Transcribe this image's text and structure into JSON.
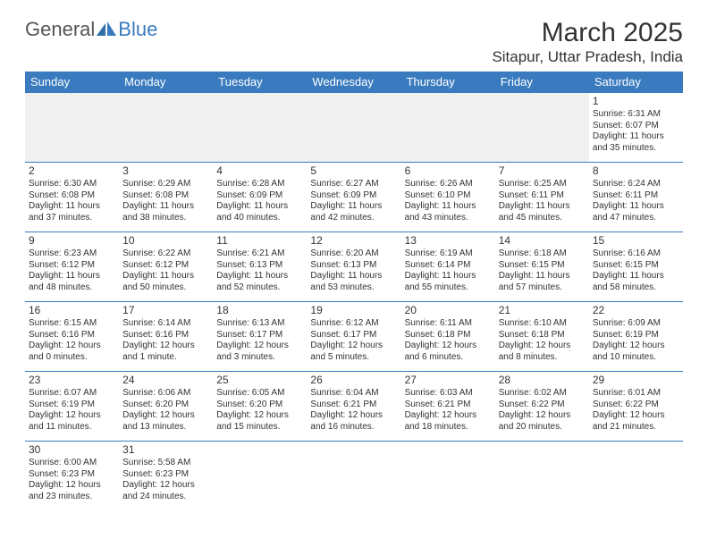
{
  "logo": {
    "text1": "General",
    "text2": "Blue"
  },
  "title": "March 2025",
  "location": "Sitapur, Uttar Pradesh, India",
  "style": {
    "header_bg": "#3a7bbf",
    "header_fg": "#ffffff",
    "border_color": "#3a7bbf",
    "empty_bg": "#f0f0f0",
    "page_bg": "#ffffff",
    "text_color": "#333333",
    "title_fontsize": 30,
    "location_fontsize": 17,
    "dayhead_fontsize": 13,
    "cell_fontsize": 10
  },
  "day_headers": [
    "Sunday",
    "Monday",
    "Tuesday",
    "Wednesday",
    "Thursday",
    "Friday",
    "Saturday"
  ],
  "weeks": [
    [
      null,
      null,
      null,
      null,
      null,
      null,
      {
        "n": "1",
        "sr": "Sunrise: 6:31 AM",
        "ss": "Sunset: 6:07 PM",
        "dl": "Daylight: 11 hours and 35 minutes."
      }
    ],
    [
      {
        "n": "2",
        "sr": "Sunrise: 6:30 AM",
        "ss": "Sunset: 6:08 PM",
        "dl": "Daylight: 11 hours and 37 minutes."
      },
      {
        "n": "3",
        "sr": "Sunrise: 6:29 AM",
        "ss": "Sunset: 6:08 PM",
        "dl": "Daylight: 11 hours and 38 minutes."
      },
      {
        "n": "4",
        "sr": "Sunrise: 6:28 AM",
        "ss": "Sunset: 6:09 PM",
        "dl": "Daylight: 11 hours and 40 minutes."
      },
      {
        "n": "5",
        "sr": "Sunrise: 6:27 AM",
        "ss": "Sunset: 6:09 PM",
        "dl": "Daylight: 11 hours and 42 minutes."
      },
      {
        "n": "6",
        "sr": "Sunrise: 6:26 AM",
        "ss": "Sunset: 6:10 PM",
        "dl": "Daylight: 11 hours and 43 minutes."
      },
      {
        "n": "7",
        "sr": "Sunrise: 6:25 AM",
        "ss": "Sunset: 6:11 PM",
        "dl": "Daylight: 11 hours and 45 minutes."
      },
      {
        "n": "8",
        "sr": "Sunrise: 6:24 AM",
        "ss": "Sunset: 6:11 PM",
        "dl": "Daylight: 11 hours and 47 minutes."
      }
    ],
    [
      {
        "n": "9",
        "sr": "Sunrise: 6:23 AM",
        "ss": "Sunset: 6:12 PM",
        "dl": "Daylight: 11 hours and 48 minutes."
      },
      {
        "n": "10",
        "sr": "Sunrise: 6:22 AM",
        "ss": "Sunset: 6:12 PM",
        "dl": "Daylight: 11 hours and 50 minutes."
      },
      {
        "n": "11",
        "sr": "Sunrise: 6:21 AM",
        "ss": "Sunset: 6:13 PM",
        "dl": "Daylight: 11 hours and 52 minutes."
      },
      {
        "n": "12",
        "sr": "Sunrise: 6:20 AM",
        "ss": "Sunset: 6:13 PM",
        "dl": "Daylight: 11 hours and 53 minutes."
      },
      {
        "n": "13",
        "sr": "Sunrise: 6:19 AM",
        "ss": "Sunset: 6:14 PM",
        "dl": "Daylight: 11 hours and 55 minutes."
      },
      {
        "n": "14",
        "sr": "Sunrise: 6:18 AM",
        "ss": "Sunset: 6:15 PM",
        "dl": "Daylight: 11 hours and 57 minutes."
      },
      {
        "n": "15",
        "sr": "Sunrise: 6:16 AM",
        "ss": "Sunset: 6:15 PM",
        "dl": "Daylight: 11 hours and 58 minutes."
      }
    ],
    [
      {
        "n": "16",
        "sr": "Sunrise: 6:15 AM",
        "ss": "Sunset: 6:16 PM",
        "dl": "Daylight: 12 hours and 0 minutes."
      },
      {
        "n": "17",
        "sr": "Sunrise: 6:14 AM",
        "ss": "Sunset: 6:16 PM",
        "dl": "Daylight: 12 hours and 1 minute."
      },
      {
        "n": "18",
        "sr": "Sunrise: 6:13 AM",
        "ss": "Sunset: 6:17 PM",
        "dl": "Daylight: 12 hours and 3 minutes."
      },
      {
        "n": "19",
        "sr": "Sunrise: 6:12 AM",
        "ss": "Sunset: 6:17 PM",
        "dl": "Daylight: 12 hours and 5 minutes."
      },
      {
        "n": "20",
        "sr": "Sunrise: 6:11 AM",
        "ss": "Sunset: 6:18 PM",
        "dl": "Daylight: 12 hours and 6 minutes."
      },
      {
        "n": "21",
        "sr": "Sunrise: 6:10 AM",
        "ss": "Sunset: 6:18 PM",
        "dl": "Daylight: 12 hours and 8 minutes."
      },
      {
        "n": "22",
        "sr": "Sunrise: 6:09 AM",
        "ss": "Sunset: 6:19 PM",
        "dl": "Daylight: 12 hours and 10 minutes."
      }
    ],
    [
      {
        "n": "23",
        "sr": "Sunrise: 6:07 AM",
        "ss": "Sunset: 6:19 PM",
        "dl": "Daylight: 12 hours and 11 minutes."
      },
      {
        "n": "24",
        "sr": "Sunrise: 6:06 AM",
        "ss": "Sunset: 6:20 PM",
        "dl": "Daylight: 12 hours and 13 minutes."
      },
      {
        "n": "25",
        "sr": "Sunrise: 6:05 AM",
        "ss": "Sunset: 6:20 PM",
        "dl": "Daylight: 12 hours and 15 minutes."
      },
      {
        "n": "26",
        "sr": "Sunrise: 6:04 AM",
        "ss": "Sunset: 6:21 PM",
        "dl": "Daylight: 12 hours and 16 minutes."
      },
      {
        "n": "27",
        "sr": "Sunrise: 6:03 AM",
        "ss": "Sunset: 6:21 PM",
        "dl": "Daylight: 12 hours and 18 minutes."
      },
      {
        "n": "28",
        "sr": "Sunrise: 6:02 AM",
        "ss": "Sunset: 6:22 PM",
        "dl": "Daylight: 12 hours and 20 minutes."
      },
      {
        "n": "29",
        "sr": "Sunrise: 6:01 AM",
        "ss": "Sunset: 6:22 PM",
        "dl": "Daylight: 12 hours and 21 minutes."
      }
    ],
    [
      {
        "n": "30",
        "sr": "Sunrise: 6:00 AM",
        "ss": "Sunset: 6:23 PM",
        "dl": "Daylight: 12 hours and 23 minutes."
      },
      {
        "n": "31",
        "sr": "Sunrise: 5:58 AM",
        "ss": "Sunset: 6:23 PM",
        "dl": "Daylight: 12 hours and 24 minutes."
      },
      null,
      null,
      null,
      null,
      null
    ]
  ]
}
